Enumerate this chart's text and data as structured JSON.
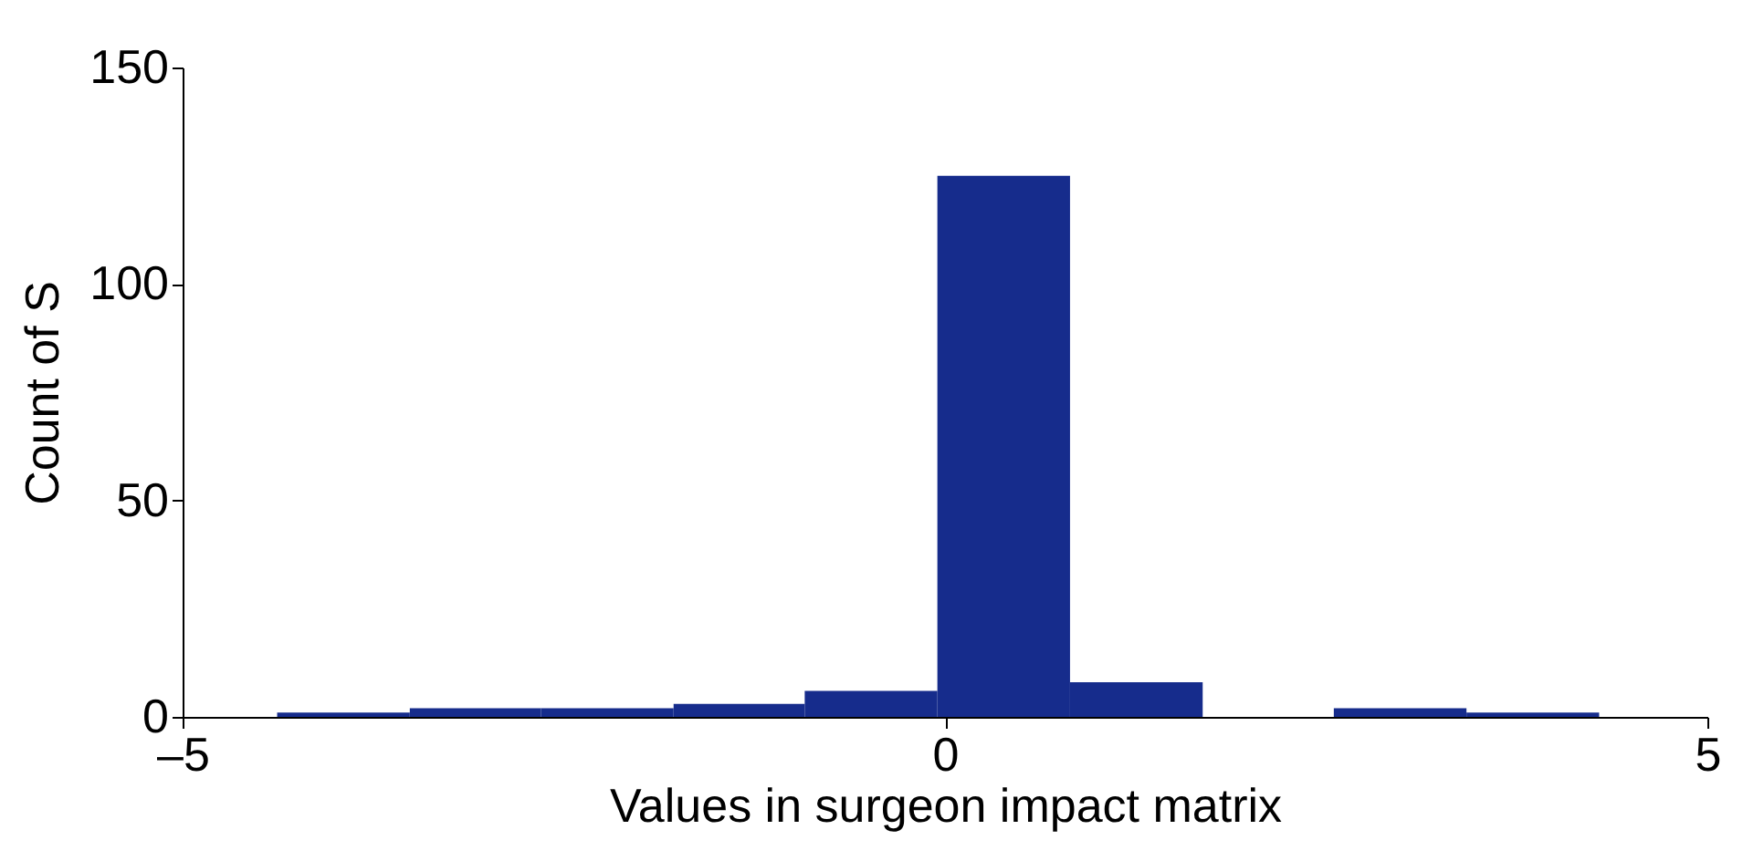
{
  "chart_data": {
    "type": "histogram",
    "xlabel": "Values in surgeon impact matrix",
    "ylabel": "Count of S",
    "bins": [
      -4.38,
      -3.51,
      -2.65,
      -1.78,
      -0.92,
      -0.05,
      0.82,
      1.69,
      2.55,
      3.42,
      4.29
    ],
    "values": [
      1,
      2,
      2,
      3,
      6,
      125,
      8,
      0,
      2,
      1
    ],
    "color": "#162c8c",
    "xlim": [
      -5,
      5
    ],
    "xticks": [
      {
        "value": -5,
        "label": "–5"
      },
      0,
      5
    ],
    "ylim": [
      0,
      150
    ],
    "yticks": [
      0,
      50,
      100,
      150
    ],
    "grid": false
  }
}
